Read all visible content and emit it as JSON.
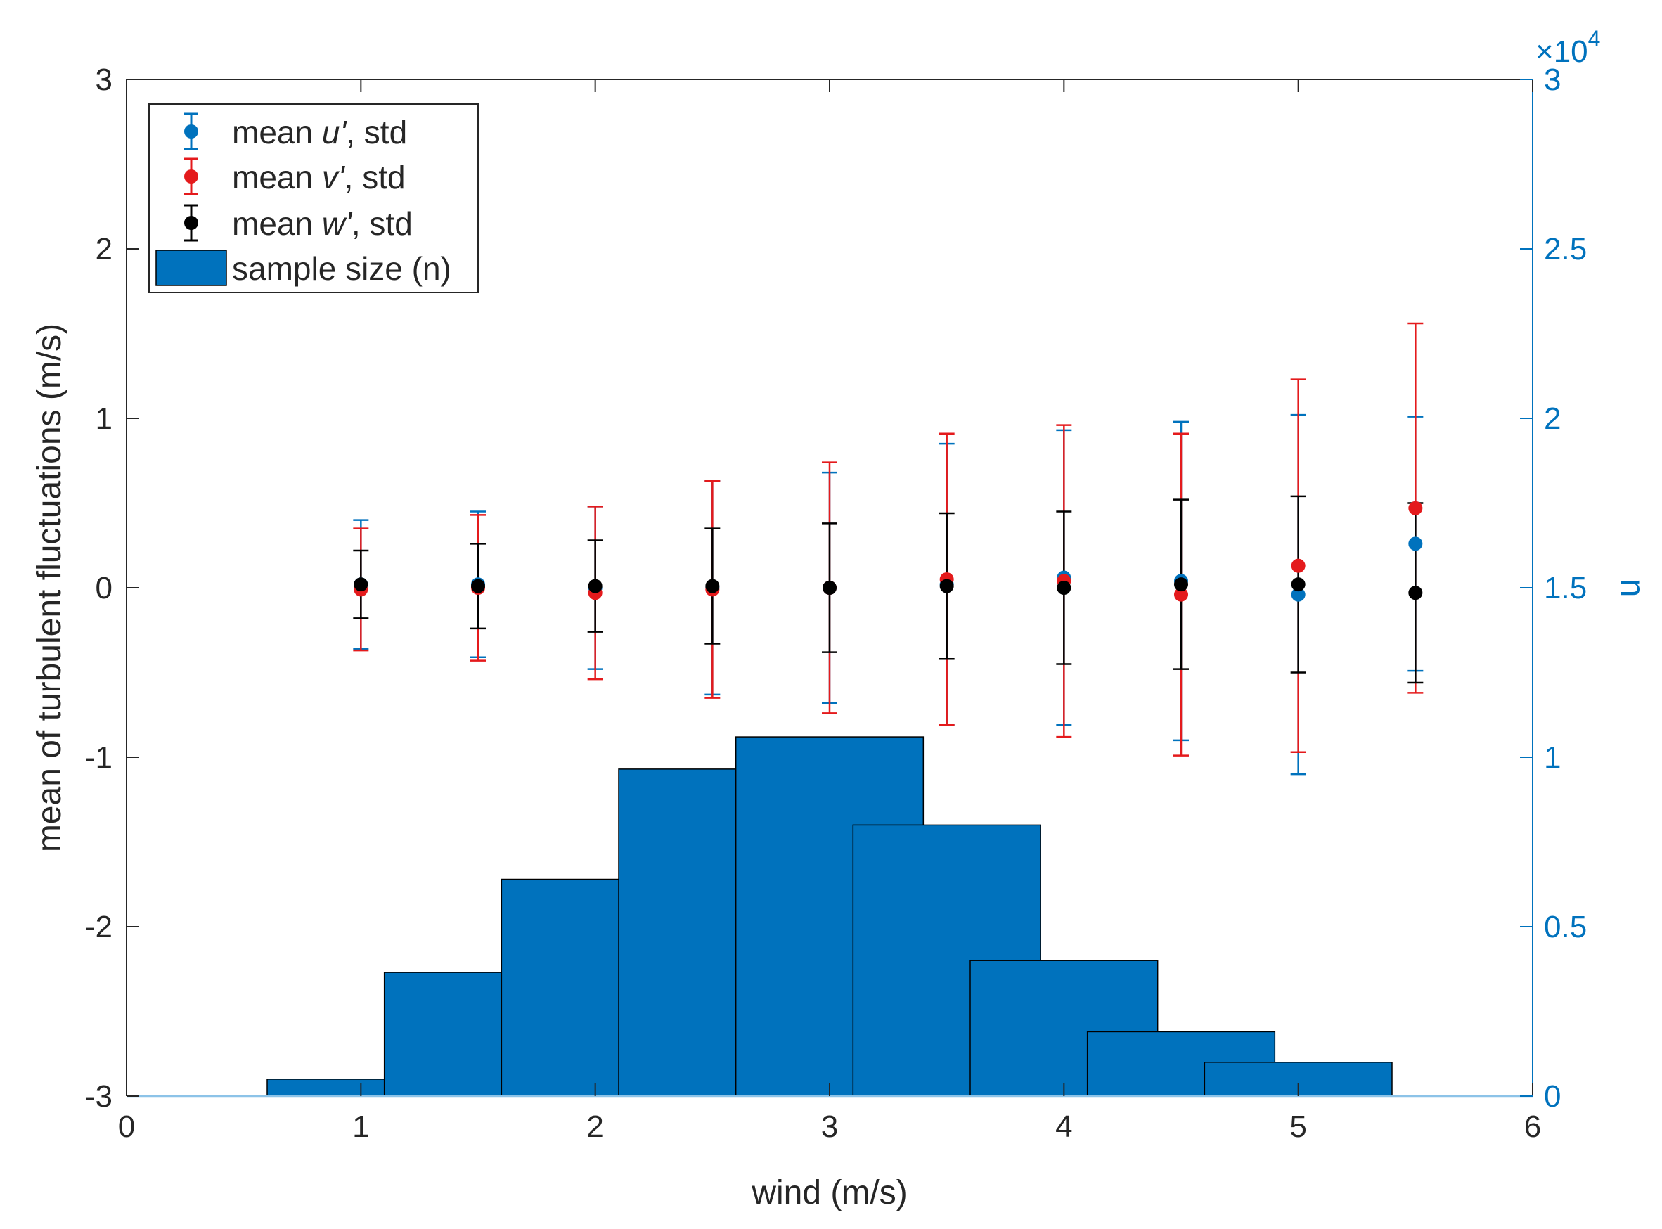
{
  "chart_data": {
    "type": "bar",
    "title": "",
    "xlabel": "wind (m/s)",
    "ylabel": "mean of turbulent fluctuations (m/s)",
    "ylabel_right": "n",
    "right_axis_exponent": "×10",
    "right_axis_exponent_power": "4",
    "xlim": [
      0,
      6
    ],
    "ylim": [
      -3,
      3
    ],
    "ylim_right": [
      0,
      30000
    ],
    "xticks": [
      0,
      1,
      2,
      3,
      4,
      5,
      6
    ],
    "xtick_labels": [
      "0",
      "1",
      "2",
      "3",
      "4",
      "5",
      "6"
    ],
    "yticks": [
      -3,
      -2,
      -1,
      0,
      1,
      2,
      3
    ],
    "ytick_labels": [
      "-3",
      "-2",
      "-1",
      "0",
      "1",
      "2",
      "3"
    ],
    "yticks_right": [
      0,
      5000,
      10000,
      15000,
      20000,
      25000,
      30000
    ],
    "ytick_labels_right": [
      "0",
      "0.5",
      "1",
      "1.5",
      "2",
      "2.5",
      "3"
    ],
    "legend_position": "top-left",
    "legend": {
      "u_prefix": "mean ",
      "u_var": "u'",
      "u_suffix": ", std",
      "v_prefix": "mean ",
      "v_var": "v'",
      "v_suffix": ", std",
      "w_prefix": "mean ",
      "w_var": "w'",
      "w_suffix": ", std",
      "bar_label": "sample size (n)"
    },
    "bars": {
      "name": "sample size (n)",
      "color": "#0072BD",
      "x": [
        0.5,
        1,
        1.5,
        2,
        2.5,
        3,
        3.5,
        4,
        4.5,
        5,
        5.5
      ],
      "values": [
        0,
        500,
        3650,
        6400,
        9650,
        10600,
        8000,
        4000,
        1900,
        1000,
        0
      ]
    },
    "series": [
      {
        "name": "mean u', std",
        "color": "#0072BD",
        "x": [
          1,
          1.5,
          2,
          2.5,
          3,
          3.5,
          4,
          4.5,
          5,
          5.5
        ],
        "mean": [
          0.02,
          0.02,
          0.0,
          0.0,
          0.0,
          0.02,
          0.06,
          0.04,
          -0.04,
          0.26
        ],
        "std": [
          0.38,
          0.43,
          0.48,
          0.63,
          0.68,
          0.83,
          0.87,
          0.94,
          1.06,
          0.75
        ]
      },
      {
        "name": "mean v', std",
        "color": "#E41A1C",
        "x": [
          1,
          1.5,
          2,
          2.5,
          3,
          3.5,
          4,
          4.5,
          5,
          5.5
        ],
        "mean": [
          -0.01,
          0.0,
          -0.03,
          -0.01,
          0.0,
          0.05,
          0.04,
          -0.04,
          0.13,
          0.47
        ],
        "std": [
          0.36,
          0.43,
          0.51,
          0.64,
          0.74,
          0.86,
          0.92,
          0.95,
          1.1,
          1.09
        ]
      },
      {
        "name": "mean w', std",
        "color": "#000000",
        "x": [
          1,
          1.5,
          2,
          2.5,
          3,
          3.5,
          4,
          4.5,
          5,
          5.5
        ],
        "mean": [
          0.02,
          0.01,
          0.01,
          0.01,
          0.0,
          0.01,
          0.0,
          0.02,
          0.02,
          -0.03
        ],
        "std": [
          0.2,
          0.25,
          0.27,
          0.34,
          0.38,
          0.43,
          0.45,
          0.5,
          0.52,
          0.53
        ]
      }
    ]
  }
}
